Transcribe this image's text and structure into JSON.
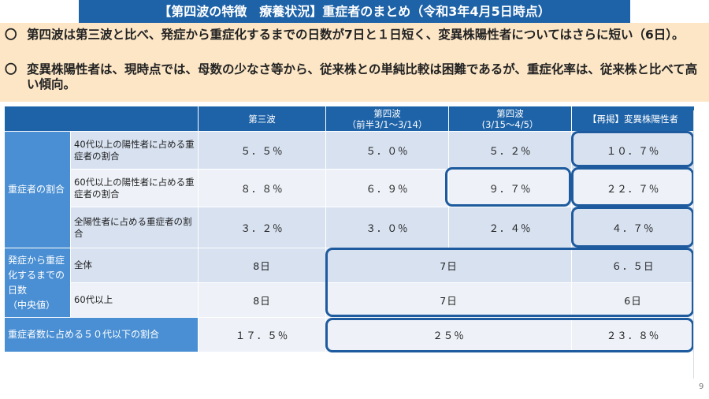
{
  "header": {
    "title": "【第四波の特徴　療養状況】重症者のまとめ（令和3年4月5日時点）"
  },
  "summary": {
    "bullet_mark": "〇",
    "items": [
      "第四波は第三波と比べ、発症から重症化するまでの日数が7日と１日短く、変異株陽性者についてはさらに短い（6日）。",
      "変異株陽性者は、現時点では、母数の少なさ等から、従来株との単純比較は困難であるが、重症化率は、従来株と比べて高い傾向。"
    ]
  },
  "table": {
    "columns": {
      "wave3": "第三波",
      "wave4a_line1": "第四波",
      "wave4a_line2": "（前半3/1～3/14）",
      "wave4b_line1": "第四波",
      "wave4b_line2": "(3/15～4/5）",
      "variant": "【再掲】変異株陽性者"
    },
    "group_severe": "重症者の割合",
    "group_days": [
      "発症から重症",
      "化するまでの",
      "日数",
      "（中央値）"
    ],
    "rows": {
      "r40": {
        "label": "40代以上の陽性者に占める重症者の割合",
        "wave3": "５．５％",
        "wave4a": "５．０％",
        "wave4b": "５．２％",
        "variant": "１０．７％"
      },
      "r60": {
        "label": "60代以上の陽性者に占める重症者の割合",
        "wave3": "８．８％",
        "wave4a": "６．９％",
        "wave4b": "９．７％",
        "variant": "２２．７％"
      },
      "rall": {
        "label": "全陽性者に占める重症者の割合",
        "wave3": "３．２％",
        "wave4a": "３．０％",
        "wave4b": "２．４％",
        "variant": "４．７％"
      },
      "dall": {
        "label": "全体",
        "wave3": "8日",
        "wave4": "7日",
        "variant": "６．５日"
      },
      "d60": {
        "label": "60代以上",
        "wave3": "8日",
        "wave4": "7日",
        "variant": "6日"
      },
      "u50": {
        "label": "重症者数に占める５０代以下の割合",
        "wave3": "１７．５％",
        "wave4": "２５％",
        "variant": "２３．８％"
      }
    }
  },
  "page_number": "9",
  "colors": {
    "header": "#1e63a8",
    "summary_bg": "#fce6c6",
    "highlight_border": "#1e5b9e"
  }
}
